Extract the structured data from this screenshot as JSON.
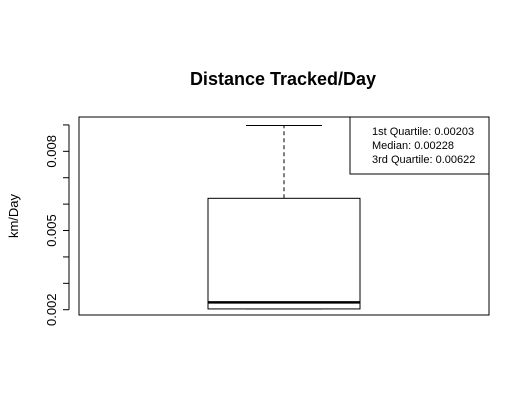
{
  "chart_data": {
    "type": "boxplot",
    "title": "Distance Tracked/Day",
    "xlabel": "",
    "ylabel": "km/Day",
    "ylim": [
      0.0018,
      0.0093
    ],
    "yticks": [
      0.002,
      0.003,
      0.004,
      0.005,
      0.006,
      0.007,
      0.008,
      0.009
    ],
    "ytick_labels": [
      "0.002",
      "0.005",
      "0.008"
    ],
    "ytick_label_values": [
      0.002,
      0.005,
      0.008
    ],
    "box": {
      "min": 0.00203,
      "q1": 0.00203,
      "median": 0.00228,
      "q3": 0.00622,
      "max": 0.00898
    },
    "legend": {
      "position": "top-right",
      "lines": [
        "1st Quartile: 0.00203",
        "Median: 0.00228",
        "3rd Quartile: 0.00622"
      ]
    }
  }
}
